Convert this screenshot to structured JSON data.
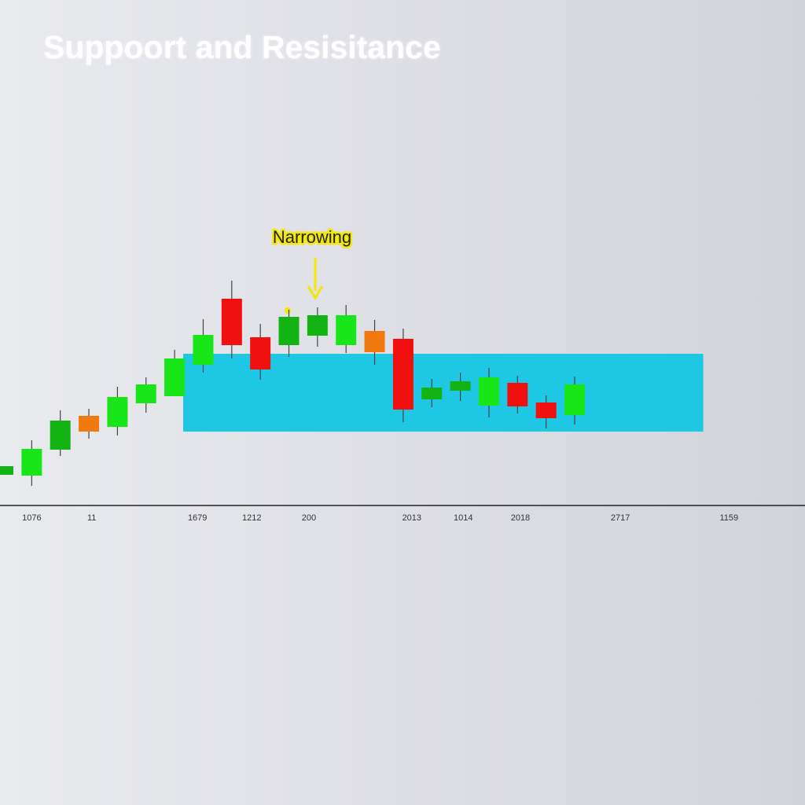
{
  "chart_data": {
    "type": "candlestick",
    "title": "Suppoort and Resisitance",
    "annotation": "Narrowing",
    "x": [
      0,
      1,
      2,
      3,
      4,
      5,
      6,
      7,
      8,
      9,
      10,
      11,
      12,
      13,
      14,
      15,
      16,
      17,
      18,
      19,
      20
    ],
    "open": [
      9.75,
      9.5,
      17.75,
      28.5,
      25,
      32.5,
      34.75,
      44.75,
      65.75,
      53.5,
      51,
      54,
      51,
      55.5,
      53,
      33.75,
      36.5,
      31.75,
      39,
      32.75,
      28.75
    ],
    "high": [
      12.5,
      20.75,
      30.25,
      30.75,
      37.75,
      40.75,
      49.5,
      59.25,
      71.5,
      57.75,
      62.25,
      63,
      63.75,
      59,
      56.25,
      40.25,
      42.25,
      43.75,
      41.25,
      35,
      41
    ],
    "low": [
      9.75,
      6.25,
      15.75,
      21.25,
      22.25,
      29.5,
      34.75,
      42.25,
      46.75,
      40,
      47.25,
      50.5,
      48.5,
      44.75,
      26.5,
      31.25,
      33.25,
      28,
      29.25,
      24.5,
      25.75
    ],
    "close": [
      12.5,
      18,
      27,
      23.5,
      34.5,
      38.5,
      46.75,
      54.25,
      51,
      43.25,
      60,
      60.5,
      60.5,
      48.75,
      30.5,
      37.5,
      39.5,
      40.75,
      31.5,
      27.75,
      38.5
    ],
    "colors": [
      "#12b312",
      "#19e619",
      "#12b312",
      "#f07a10",
      "#19e619",
      "#19e619",
      "#19e619",
      "#19e619",
      "#f01010",
      "#f01010",
      "#12b312",
      "#12b312",
      "#19e619",
      "#f07a10",
      "#f01010",
      "#12b312",
      "#12b312",
      "#19e619",
      "#f01010",
      "#f01010",
      "#19e619"
    ],
    "zone": {
      "x": [
        6.3,
        24.5
      ],
      "y": [
        23.5,
        48.25
      ],
      "color": "#1ec8e4"
    },
    "xlim": [
      -0.11,
      28.06
    ],
    "ylim": [
      0,
      100
    ],
    "xticks": [
      {
        "value": 1,
        "label": "1076"
      },
      {
        "value": 3.1,
        "label": "11"
      },
      {
        "value": 6.8,
        "label": "1679"
      },
      {
        "value": 8.7,
        "label": "1212"
      },
      {
        "value": 10.7,
        "label": "200"
      },
      {
        "value": 14.3,
        "label": "2013"
      },
      {
        "value": 16.1,
        "label": "1014"
      },
      {
        "value": 18.1,
        "label": "2018"
      },
      {
        "value": 21.6,
        "label": "2717"
      },
      {
        "value": 25.4,
        "label": "1159"
      }
    ]
  }
}
